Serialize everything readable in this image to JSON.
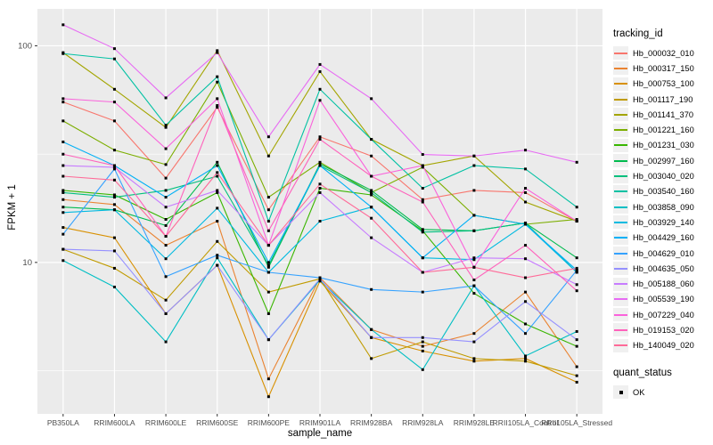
{
  "chart_data": {
    "type": "line",
    "title": "",
    "xlabel": "sample_name",
    "ylabel": "FPKM + 1",
    "y_scale": "log10",
    "ylim": [
      2,
      148
    ],
    "y_major_ticks": [
      10,
      100
    ],
    "y_minor_gridlines": [
      3.162,
      31.62
    ],
    "grid": "on",
    "legend_position": "right",
    "panel_bg": "#EBEBEB",
    "grid_color": "#FFFFFF",
    "point_color": "#000000",
    "axis_text_color": "#4D4D4D",
    "categories": [
      "PB350LA",
      "RRIM600LA",
      "RRIM600LE",
      "RRIM600SE",
      "RRIM600PE",
      "RRIM901LA",
      "RRIM928BA",
      "RRIM928LA",
      "RRIM928LE",
      "RRII105LA_Control",
      "RRII105LA_Stressed"
    ],
    "legend_title": "tracking_id",
    "quant_legend": {
      "title": "quant_status",
      "label": "OK",
      "marker": "black-square"
    },
    "series": [
      {
        "name": "Hb_000032_010",
        "color": "#F8766D",
        "values": [
          55,
          45,
          24.5,
          52,
          17.5,
          38,
          31,
          19.5,
          21.5,
          21,
          15.5
        ]
      },
      {
        "name": "Hb_000317_150",
        "color": "#EA8331",
        "values": [
          19.5,
          18.5,
          12,
          15.5,
          2.9,
          8.5,
          4.9,
          4.1,
          4.7,
          7.3,
          3.3
        ]
      },
      {
        "name": "Hb_000753_100",
        "color": "#D89000",
        "values": [
          14.5,
          13,
          5.8,
          9.7,
          2.4,
          8.2,
          4.5,
          3.9,
          3.5,
          3.6,
          2.8
        ]
      },
      {
        "name": "Hb_001117_190",
        "color": "#C09B00",
        "values": [
          11.5,
          9.4,
          6.7,
          12.5,
          7.3,
          8.4,
          3.6,
          4.3,
          3.6,
          3.5,
          3.0
        ]
      },
      {
        "name": "Hb_001141_370",
        "color": "#A3A500",
        "values": [
          93,
          63,
          42,
          95,
          31,
          76,
          37,
          28,
          31,
          19,
          15.5
        ]
      },
      {
        "name": "Hb_001221_160",
        "color": "#7CAE00",
        "values": [
          45,
          33,
          28.3,
          68,
          20,
          29,
          21,
          27.5,
          16.5,
          15,
          15.8
        ]
      },
      {
        "name": "Hb_001231_030",
        "color": "#39B600",
        "values": [
          21.5,
          20.5,
          15.8,
          21,
          5.8,
          22,
          20.5,
          14,
          7.2,
          5.2,
          4.1
        ]
      },
      {
        "name": "Hb_002997_160",
        "color": "#00BB4E",
        "values": [
          18,
          17.5,
          14.8,
          29,
          9.5,
          28.5,
          21.5,
          14.2,
          14,
          15.2,
          10.5
        ]
      },
      {
        "name": "Hb_003040_020",
        "color": "#00BF7D",
        "values": [
          21,
          20,
          21.5,
          25,
          9.7,
          28,
          21,
          13.8,
          14,
          15.2,
          9
        ]
      },
      {
        "name": "Hb_003540_160",
        "color": "#00C1A3",
        "values": [
          92,
          87,
          43,
          72,
          15.5,
          63,
          37,
          22,
          28,
          27,
          18
        ]
      },
      {
        "name": "Hb_003858_090",
        "color": "#00BFC4",
        "values": [
          10.2,
          7.7,
          4.3,
          10.5,
          4.4,
          8.3,
          4.9,
          3.2,
          7.8,
          3.7,
          4.8
        ]
      },
      {
        "name": "Hb_003929_140",
        "color": "#00BAE0",
        "values": [
          17,
          17.5,
          10.4,
          17.8,
          9,
          15.5,
          18,
          10.5,
          10.3,
          15,
          9
        ]
      },
      {
        "name": "Hb_004429_160",
        "color": "#00B0F6",
        "values": [
          36,
          28,
          20,
          28,
          10,
          28,
          18,
          10.5,
          16.5,
          15,
          9.2
        ]
      },
      {
        "name": "Hb_004629_010",
        "color": "#35A2FF",
        "values": [
          13.5,
          27,
          8.6,
          10.8,
          9,
          8.5,
          7.5,
          7.3,
          7.8,
          4.7,
          9.2
        ]
      },
      {
        "name": "Hb_004635_050",
        "color": "#9590FF",
        "values": [
          11.5,
          11.3,
          5.8,
          9.7,
          4.4,
          8.4,
          4.5,
          4.5,
          4.3,
          6.6,
          4.4
        ]
      },
      {
        "name": "Hb_005188_060",
        "color": "#C77CFF",
        "values": [
          28,
          27.5,
          18,
          21.5,
          12,
          21,
          13,
          9,
          10.5,
          10.4,
          7.9
        ]
      },
      {
        "name": "Hb_005539_190",
        "color": "#E76BF3",
        "values": [
          125,
          97,
          57.5,
          93,
          38,
          82,
          57,
          31.5,
          31,
          33,
          29
        ]
      },
      {
        "name": "Hb_007229_040",
        "color": "#FA62DB",
        "values": [
          57,
          55,
          33.5,
          57,
          12,
          56,
          25,
          28,
          9.5,
          22,
          15.5
        ]
      },
      {
        "name": "Hb_019153_020",
        "color": "#FF62BC",
        "values": [
          31.6,
          28,
          13.2,
          53,
          14,
          37,
          25,
          19,
          8.3,
          12,
          7.4
        ]
      },
      {
        "name": "Hb_140049_020",
        "color": "#FF6A98",
        "values": [
          25,
          24,
          13.2,
          26,
          12,
          23,
          16,
          9,
          9.5,
          8.5,
          9.4
        ]
      }
    ]
  }
}
